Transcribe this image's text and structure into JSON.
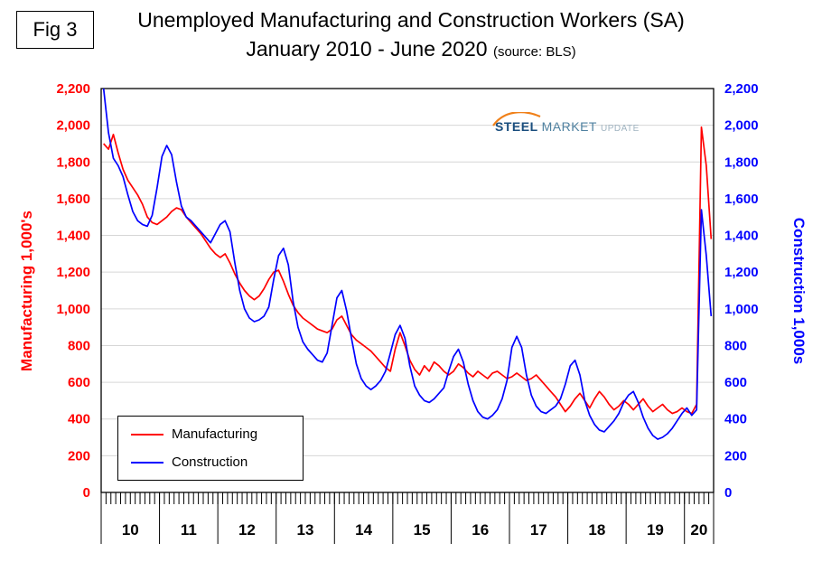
{
  "figure": {
    "label": "Fig 3"
  },
  "title": {
    "line1": "Unemployed Manufacturing and Construction Workers (SA)",
    "line2_main": "January 2010 - June 2020",
    "line2_source": "(source: BLS)"
  },
  "logo": {
    "steel": "STEEL",
    "market": "MARKET",
    "update": "UPDATE"
  },
  "chart_data": {
    "type": "line",
    "title": "Unemployed Manufacturing and Construction Workers (SA)",
    "subtitle": "January 2010 - June 2020 (source: BLS)",
    "xlabel": "",
    "ylabel_left": "Manufacturing  1,000's",
    "ylabel_right": "Construction 1,000s",
    "ylim": [
      0,
      2200
    ],
    "ytick_step": 200,
    "grid": "horizontal",
    "legend_position": "lower-left-inside",
    "x_unit": "month",
    "x_years": [
      "10",
      "11",
      "12",
      "13",
      "14",
      "15",
      "16",
      "17",
      "18",
      "19",
      "20"
    ],
    "months_per_year": [
      12,
      12,
      12,
      12,
      12,
      12,
      12,
      12,
      12,
      12,
      6
    ],
    "series": [
      {
        "name": "Manufacturing",
        "color": "#FF0000",
        "axis": "left",
        "values": [
          1900,
          1870,
          1950,
          1850,
          1760,
          1700,
          1660,
          1620,
          1570,
          1500,
          1470,
          1460,
          1480,
          1500,
          1530,
          1550,
          1540,
          1500,
          1470,
          1440,
          1410,
          1370,
          1330,
          1300,
          1280,
          1300,
          1250,
          1190,
          1140,
          1100,
          1070,
          1050,
          1070,
          1110,
          1160,
          1200,
          1210,
          1150,
          1080,
          1020,
          980,
          950,
          930,
          910,
          890,
          880,
          870,
          890,
          940,
          960,
          910,
          860,
          830,
          810,
          790,
          770,
          740,
          710,
          680,
          660,
          780,
          870,
          800,
          720,
          670,
          640,
          690,
          660,
          710,
          690,
          660,
          640,
          660,
          700,
          680,
          650,
          630,
          660,
          640,
          620,
          650,
          660,
          640,
          620,
          630,
          650,
          630,
          610,
          620,
          640,
          610,
          580,
          550,
          520,
          480,
          440,
          470,
          510,
          540,
          500,
          460,
          510,
          550,
          520,
          480,
          450,
          470,
          500,
          480,
          450,
          480,
          510,
          470,
          440,
          460,
          480,
          450,
          430,
          440,
          460,
          440,
          430,
          480,
          1990,
          1780,
          1380
        ]
      },
      {
        "name": "Construction",
        "color": "#0000FF",
        "axis": "right",
        "values": [
          2200,
          1960,
          1820,
          1780,
          1720,
          1620,
          1530,
          1480,
          1460,
          1450,
          1510,
          1660,
          1830,
          1890,
          1840,
          1690,
          1560,
          1500,
          1480,
          1450,
          1420,
          1390,
          1360,
          1410,
          1460,
          1480,
          1420,
          1250,
          1100,
          1000,
          950,
          930,
          940,
          960,
          1010,
          1160,
          1290,
          1330,
          1240,
          1040,
          900,
          820,
          780,
          750,
          720,
          710,
          760,
          910,
          1060,
          1100,
          990,
          840,
          700,
          620,
          580,
          560,
          580,
          610,
          660,
          760,
          860,
          910,
          840,
          690,
          580,
          530,
          500,
          490,
          510,
          540,
          570,
          660,
          740,
          780,
          710,
          590,
          500,
          440,
          410,
          400,
          420,
          450,
          510,
          610,
          790,
          850,
          790,
          640,
          530,
          470,
          440,
          430,
          450,
          470,
          510,
          590,
          690,
          720,
          640,
          500,
          420,
          370,
          340,
          330,
          360,
          390,
          430,
          490,
          530,
          550,
          490,
          410,
          350,
          310,
          290,
          300,
          320,
          350,
          390,
          430,
          460,
          420,
          450,
          1540,
          1290,
          960
        ]
      }
    ]
  }
}
